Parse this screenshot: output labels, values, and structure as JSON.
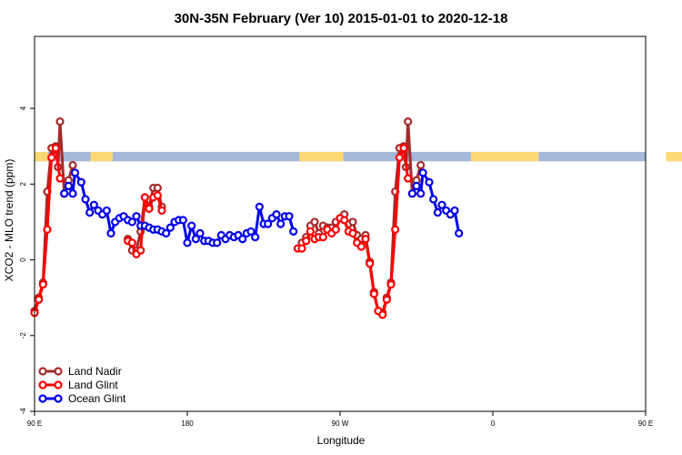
{
  "chart_data": {
    "type": "line",
    "title": "30N-35N February (Ver 10)   2015-01-01 to 2020-12-18",
    "xlabel": "Longitude",
    "ylabel": "XCO2 - MLO trend (ppm)",
    "xlim": [
      90,
      450
    ],
    "ylim": [
      -4,
      5.9
    ],
    "x_ticks": [
      {
        "value": 90,
        "label": "90 E"
      },
      {
        "value": 180,
        "label": "180"
      },
      {
        "value": 270,
        "label": "90 W"
      },
      {
        "value": 360,
        "label": "0"
      },
      {
        "value": 450,
        "label": "90 E"
      },
      {
        "value": 540,
        "label": "180"
      }
    ],
    "y_ticks": [
      -4,
      -2,
      0,
      2,
      4
    ],
    "grid": false,
    "legend_position": "bottom-left",
    "land_ocean_band": {
      "y_range": [
        2.6,
        2.85
      ],
      "ocean_color": "#a5b9db",
      "land_color": "#fcd974",
      "land_segments": [
        [
          90,
          98
        ],
        [
          123,
          136
        ],
        [
          246,
          272
        ],
        [
          347,
          387
        ],
        [
          462,
          472
        ]
      ]
    },
    "series": [
      {
        "name": "Land Nadir",
        "color": "#a52a2a",
        "points": [
          [
            90,
            -1.35
          ],
          [
            92.5,
            -1.0
          ],
          [
            95,
            -0.6
          ],
          [
            97.5,
            1.8
          ],
          [
            100,
            2.95
          ],
          [
            102.5,
            3.0
          ],
          [
            103.8,
            2.45
          ],
          [
            105,
            3.65
          ],
          [
            107.5,
            1.75
          ],
          [
            110,
            2.1
          ],
          [
            112.5,
            2.5
          ],
          [
            145,
            0.55
          ],
          [
            147.5,
            0.25
          ],
          [
            150,
            0.25
          ],
          [
            152.5,
            0.75
          ],
          [
            155,
            1.65
          ],
          [
            157.5,
            1.4
          ],
          [
            160,
            1.9
          ],
          [
            162.5,
            1.9
          ],
          [
            165,
            1.4
          ],
          [
            247.5,
            0.45
          ],
          [
            250,
            0.6
          ],
          [
            252.5,
            0.9
          ],
          [
            255,
            1.0
          ],
          [
            257.5,
            0.7
          ],
          [
            260,
            0.9
          ],
          [
            262.5,
            0.85
          ],
          [
            265,
            0.85
          ],
          [
            267.5,
            1.0
          ],
          [
            270,
            1.1
          ],
          [
            272.5,
            1.2
          ],
          [
            275,
            0.95
          ],
          [
            277.5,
            1.0
          ],
          [
            280,
            0.65
          ],
          [
            282.5,
            0.55
          ],
          [
            285,
            0.65
          ],
          [
            287.5,
            -0.05
          ],
          [
            290,
            -0.85
          ],
          [
            292.5,
            -1.35
          ],
          [
            295,
            -1.4
          ],
          [
            297.5,
            -1.0
          ],
          [
            300,
            -0.6
          ],
          [
            302.5,
            1.8
          ],
          [
            305,
            2.95
          ],
          [
            307.5,
            3.0
          ],
          [
            308.8,
            2.45
          ],
          [
            310,
            3.65
          ],
          [
            312.5,
            1.75
          ],
          [
            315,
            2.1
          ],
          [
            317.5,
            2.5
          ]
        ]
      },
      {
        "name": "Land Glint",
        "color": "#ff0000",
        "points": [
          [
            90,
            -1.4
          ],
          [
            92.5,
            -1.05
          ],
          [
            95,
            -0.65
          ],
          [
            97.5,
            0.8
          ],
          [
            100,
            2.7
          ],
          [
            102.5,
            2.95
          ],
          [
            105,
            2.15
          ],
          [
            145,
            0.5
          ],
          [
            147.5,
            0.45
          ],
          [
            150,
            0.15
          ],
          [
            152.5,
            0.25
          ],
          [
            155,
            1.65
          ],
          [
            157.5,
            1.35
          ],
          [
            160,
            1.65
          ],
          [
            162.5,
            1.7
          ],
          [
            165,
            1.3
          ],
          [
            245,
            0.3
          ],
          [
            247.5,
            0.3
          ],
          [
            250,
            0.5
          ],
          [
            252.5,
            0.75
          ],
          [
            255,
            0.55
          ],
          [
            257.5,
            0.6
          ],
          [
            260,
            0.6
          ],
          [
            262.5,
            0.8
          ],
          [
            265,
            0.7
          ],
          [
            267.5,
            0.8
          ],
          [
            270,
            1.1
          ],
          [
            272.5,
            1.05
          ],
          [
            275,
            0.75
          ],
          [
            277.5,
            0.7
          ],
          [
            280,
            0.45
          ],
          [
            282.5,
            0.35
          ],
          [
            285,
            0.55
          ],
          [
            287.5,
            -0.1
          ],
          [
            290,
            -0.9
          ],
          [
            292.5,
            -1.35
          ],
          [
            295,
            -1.45
          ],
          [
            297.5,
            -1.05
          ],
          [
            300,
            -0.65
          ],
          [
            302.5,
            0.8
          ],
          [
            305,
            2.7
          ],
          [
            307.5,
            2.95
          ],
          [
            310,
            2.15
          ]
        ]
      },
      {
        "name": "Ocean Glint",
        "color": "#0000ee",
        "points": [
          [
            107.5,
            1.75
          ],
          [
            110,
            1.95
          ],
          [
            112.5,
            1.75
          ],
          [
            113.8,
            2.3
          ],
          [
            117.5,
            2.05
          ],
          [
            120,
            1.6
          ],
          [
            122.5,
            1.25
          ],
          [
            125,
            1.45
          ],
          [
            127.5,
            1.3
          ],
          [
            130,
            1.2
          ],
          [
            132.5,
            1.3
          ],
          [
            135,
            0.7
          ],
          [
            137.5,
            1.0
          ],
          [
            140,
            1.1
          ],
          [
            142.5,
            1.15
          ],
          [
            145,
            1.05
          ],
          [
            147.5,
            1.0
          ],
          [
            150,
            1.15
          ],
          [
            152.5,
            0.9
          ],
          [
            155,
            0.9
          ],
          [
            157.5,
            0.85
          ],
          [
            160,
            0.8
          ],
          [
            162.5,
            0.8
          ],
          [
            165,
            0.75
          ],
          [
            167.5,
            0.7
          ],
          [
            170,
            0.85
          ],
          [
            172.5,
            1.0
          ],
          [
            175,
            1.05
          ],
          [
            177.5,
            1.05
          ],
          [
            180,
            0.45
          ],
          [
            182.5,
            0.9
          ],
          [
            185,
            0.55
          ],
          [
            187.5,
            0.7
          ],
          [
            190,
            0.5
          ],
          [
            192.5,
            0.5
          ],
          [
            195,
            0.45
          ],
          [
            197.5,
            0.45
          ],
          [
            200,
            0.65
          ],
          [
            202.5,
            0.55
          ],
          [
            205,
            0.65
          ],
          [
            207.5,
            0.6
          ],
          [
            210,
            0.65
          ],
          [
            212.5,
            0.55
          ],
          [
            215,
            0.7
          ],
          [
            217.5,
            0.75
          ],
          [
            220,
            0.6
          ],
          [
            222.5,
            1.4
          ],
          [
            225,
            0.95
          ],
          [
            227.5,
            0.95
          ],
          [
            230,
            1.1
          ],
          [
            232.5,
            1.2
          ],
          [
            235,
            0.95
          ],
          [
            237.5,
            1.15
          ],
          [
            240,
            1.15
          ],
          [
            242.5,
            0.75
          ],
          [
            312.5,
            1.75
          ],
          [
            315,
            1.95
          ],
          [
            317.5,
            1.75
          ],
          [
            318.8,
            2.3
          ],
          [
            322.5,
            2.05
          ],
          [
            325,
            1.6
          ],
          [
            327.5,
            1.25
          ],
          [
            330,
            1.45
          ],
          [
            332.5,
            1.3
          ],
          [
            335,
            1.2
          ],
          [
            337.5,
            1.3
          ],
          [
            340,
            0.7
          ]
        ]
      }
    ]
  }
}
